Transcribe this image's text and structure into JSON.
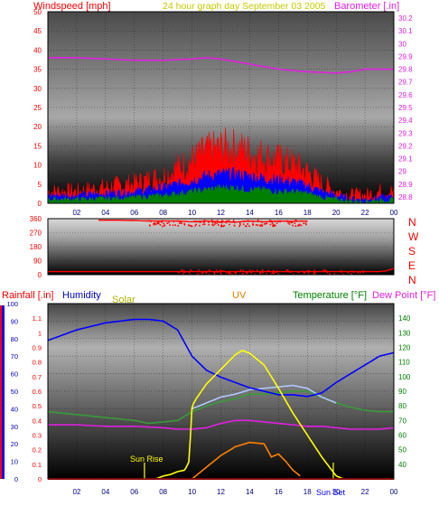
{
  "header": {
    "left": "Windspeed [mph]",
    "center": "24 hour graph day  September 03 2005",
    "right": "Barometer [.in]"
  },
  "wind_dir_labels": [
    "N",
    "W",
    "S",
    "E",
    "N"
  ],
  "bottom_header": {
    "rainfall": "Rainfall [.in]",
    "humidity": "Humidity",
    "solar": "Solar",
    "uv": "UV",
    "temperature": "Temperature [°F]",
    "dewpoint": "Dew Point [°F]"
  },
  "annotations": {
    "sunrise": "Sun Rise",
    "sunset": "Sun Set"
  },
  "colors": {
    "windspeed": "#ff0000",
    "windavg": "#0000ff",
    "windgust_low": "#008000",
    "barometer": "#e020e0",
    "direction": "#ff0000",
    "humidity": "#0000ff",
    "solar": "#ffff00",
    "uv": "#ff8000",
    "temperature": "#3a9a3a",
    "dewpoint": "#e020e0",
    "rain": "#ff0000",
    "apparent": "#b0c8ff"
  },
  "chart_data": [
    {
      "type": "line",
      "title": "24 hour graph day  September 03 2005",
      "x_ticks": [
        "02",
        "04",
        "06",
        "08",
        "10",
        "12",
        "14",
        "16",
        "18",
        "20",
        "22",
        "00"
      ],
      "xlim": [
        0,
        24
      ],
      "y_left": {
        "label": "Windspeed [mph]",
        "ylim": [
          0,
          50
        ],
        "ticks": [
          0,
          5,
          10,
          15,
          20,
          25,
          30,
          35,
          40,
          45,
          50
        ]
      },
      "y_right": {
        "label": "Barometer [.in]",
        "ylim": [
          28.75,
          30.25
        ],
        "ticks": [
          "28.8",
          "28.9",
          "29",
          "29.1",
          "29.2",
          "29.3",
          "29.4",
          "29.5",
          "29.6",
          "29.7",
          "29.8",
          "29.9",
          "30",
          "30.1",
          "30.2"
        ]
      },
      "series": [
        {
          "name": "Barometer",
          "x": [
            0,
            2,
            4,
            6,
            8,
            10,
            11,
            12,
            14,
            16,
            18,
            20,
            21,
            22,
            24
          ],
          "values": [
            29.89,
            29.89,
            29.88,
            29.87,
            29.87,
            29.88,
            29.89,
            29.88,
            29.84,
            29.8,
            29.78,
            29.77,
            29.78,
            29.8,
            29.8
          ]
        },
        {
          "name": "Windspeed",
          "x": [
            0,
            2,
            4,
            6,
            8,
            9,
            10,
            11,
            12,
            13,
            14,
            15,
            16,
            17,
            18,
            19,
            20,
            21,
            22,
            23,
            24
          ],
          "values": [
            3,
            3,
            4,
            5,
            7,
            9,
            11,
            13,
            14,
            14,
            13,
            12,
            11,
            10,
            8,
            5,
            3,
            2,
            2,
            3,
            3
          ]
        },
        {
          "name": "Wind Avg",
          "x": [
            0,
            2,
            4,
            6,
            8,
            9,
            10,
            11,
            12,
            13,
            14,
            15,
            16,
            17,
            18,
            19,
            20,
            21,
            22,
            23,
            24
          ],
          "values": [
            2,
            2,
            2.5,
            3,
            4,
            5,
            6,
            7,
            7.5,
            7.5,
            7,
            6.5,
            6,
            5.5,
            4.5,
            3,
            2,
            1,
            1,
            1.5,
            1.5
          ]
        },
        {
          "name": "Wind Low",
          "x": [
            0,
            2,
            4,
            6,
            8,
            9,
            10,
            11,
            12,
            13,
            14,
            15,
            16,
            17,
            18,
            19,
            20,
            21,
            22,
            23,
            24
          ],
          "values": [
            1,
            1,
            1.2,
            1.5,
            2,
            2.5,
            3,
            3.5,
            4,
            4,
            3.5,
            3.5,
            3,
            3,
            2.5,
            1.5,
            1,
            0.5,
            0.5,
            0.8,
            0.8
          ]
        }
      ]
    },
    {
      "type": "scatter",
      "title": "",
      "x_ticks": [],
      "xlim": [
        0,
        24
      ],
      "y": {
        "label": "",
        "ylim": [
          0,
          360
        ],
        "ticks": [
          0,
          90,
          180,
          270,
          360
        ]
      },
      "series": [
        {
          "name": "Wind Direction",
          "x": [
            0,
            0.5,
            1,
            2,
            3,
            4,
            5,
            6,
            7,
            8,
            9,
            10,
            11,
            12,
            13,
            14,
            15,
            16,
            17,
            18,
            19,
            20,
            21,
            22,
            23,
            23.5,
            24
          ],
          "values": [
            20,
            20,
            20,
            20,
            20,
            20,
            20,
            20,
            20,
            20,
            20,
            20,
            20,
            20,
            20,
            20,
            20,
            20,
            20,
            20,
            20,
            20,
            20,
            20,
            20,
            25,
            40
          ]
        },
        {
          "name": "Wind Direction NW",
          "x": [
            3.5,
            4,
            5,
            6,
            7,
            8,
            9,
            10,
            11,
            12,
            13,
            14,
            15,
            16,
            17,
            18
          ],
          "values": [
            350,
            350,
            350,
            348,
            345,
            345,
            345,
            340,
            345,
            340,
            338,
            345,
            340,
            345,
            343,
            345
          ]
        }
      ]
    },
    {
      "type": "line",
      "title": "",
      "x_ticks": [
        "02",
        "04",
        "06",
        "08",
        "10",
        "12",
        "14",
        "16",
        "18",
        "20",
        "22",
        "00"
      ],
      "xlim": [
        0,
        24
      ],
      "y_left_rain": {
        "label": "Rainfall [.in]",
        "ylim": [
          0,
          1.2
        ],
        "ticks": [
          "0",
          "0.1",
          "0.2",
          "0.3",
          "0.4",
          "0.5",
          "0.6",
          "0.7",
          "0.8",
          "0.9",
          "1",
          "1.1"
        ]
      },
      "y_left_pct": {
        "label": "Humidity",
        "ylim": [
          0,
          100
        ],
        "ticks": [
          0,
          10,
          20,
          30,
          40,
          50,
          60,
          70,
          80,
          90,
          100
        ]
      },
      "y_right": {
        "label": "Temperature [°F]",
        "ylim": [
          30,
          150
        ],
        "ticks": [
          40,
          50,
          60,
          70,
          80,
          90,
          100,
          110,
          120,
          130,
          140
        ]
      },
      "series": [
        {
          "name": "Humidity",
          "x": [
            0,
            1,
            2,
            3,
            4,
            5,
            6,
            7,
            8,
            9,
            10,
            11,
            12,
            13,
            14,
            15,
            16,
            17,
            18,
            19,
            20,
            21,
            22,
            23,
            24
          ],
          "values": [
            79,
            82,
            85,
            87,
            89,
            90,
            91,
            91,
            90,
            85,
            70,
            62,
            58,
            55,
            52,
            50,
            48,
            48,
            47,
            49,
            55,
            60,
            65,
            70,
            72
          ]
        },
        {
          "name": "Temperature",
          "x": [
            0,
            2,
            4,
            6,
            7,
            8,
            9,
            10,
            11,
            12,
            13,
            14,
            15,
            16,
            17,
            18,
            19,
            20,
            21,
            22,
            23,
            24
          ],
          "values": [
            76,
            74,
            72,
            70,
            68,
            69,
            70,
            76,
            80,
            83,
            85,
            88,
            88,
            89,
            90,
            90,
            86,
            82,
            79,
            77,
            76,
            76
          ]
        },
        {
          "name": "Apparent Temp",
          "x": [
            10,
            11,
            12,
            13,
            14,
            15,
            16,
            17,
            18,
            19,
            20
          ],
          "values": [
            78,
            82,
            86,
            88,
            91,
            92,
            93,
            94,
            92,
            86,
            82
          ]
        },
        {
          "name": "Dew Point",
          "x": [
            0,
            2,
            4,
            6,
            8,
            9,
            10,
            11,
            12,
            13,
            14,
            15,
            16,
            17,
            18,
            19,
            20,
            21,
            22,
            23,
            24
          ],
          "values": [
            67,
            67,
            66,
            66,
            65,
            64,
            64,
            65,
            68,
            70,
            70,
            69,
            68,
            67,
            66,
            66,
            65,
            64,
            64,
            64,
            65
          ]
        },
        {
          "name": "Solar",
          "x": [
            7.5,
            8,
            8.5,
            9,
            9.5,
            9.8,
            10,
            10.3,
            11,
            12,
            13,
            13.5,
            14,
            15,
            16,
            17,
            18,
            19,
            20,
            20.5
          ],
          "values": [
            0,
            0.02,
            0.03,
            0.05,
            0.06,
            0.12,
            0.5,
            0.55,
            0.65,
            0.75,
            0.85,
            0.88,
            0.86,
            0.78,
            0.62,
            0.45,
            0.3,
            0.15,
            0.02,
            0
          ]
        },
        {
          "name": "UV",
          "x": [
            10,
            11,
            12,
            13,
            14,
            15,
            15.5,
            16,
            16.5,
            17,
            17.5
          ],
          "values": [
            0,
            0.08,
            0.16,
            0.22,
            0.25,
            0.24,
            0.15,
            0.17,
            0.12,
            0.06,
            0.02
          ]
        },
        {
          "name": "Rainfall",
          "x": [
            0,
            24
          ],
          "values": [
            0,
            0
          ]
        }
      ]
    }
  ]
}
